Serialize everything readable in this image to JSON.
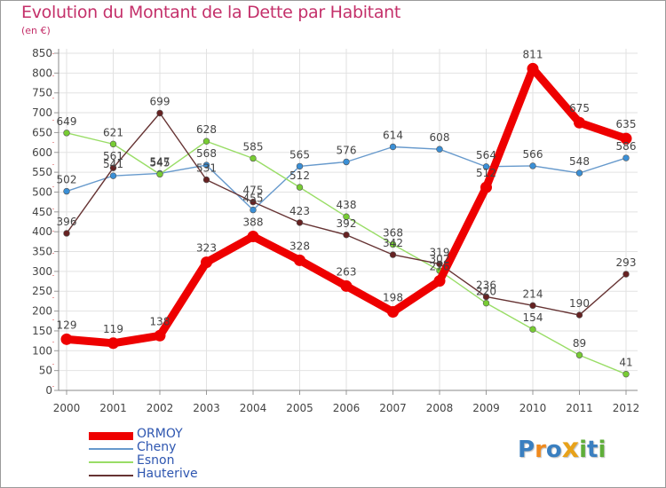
{
  "header": {
    "title": "Evolution du Montant de la Dette par Habitant",
    "subtitle": "(en €)"
  },
  "brand": {
    "name": "Proxiti",
    "letters": [
      "P",
      "r",
      "o",
      "x",
      "i",
      "t",
      "i"
    ],
    "colors": [
      "#3a7fc0",
      "#f08a1e",
      "#3a7fc0",
      "#e8a21a",
      "#5fae3a",
      "#3a7fc0",
      "#5fae3a"
    ]
  },
  "chart_data": {
    "type": "line",
    "title": "Evolution du Montant de la Dette par Habitant",
    "subtitle": "(en €)",
    "xlabel": "",
    "ylabel": "",
    "x": [
      "2000",
      "2001",
      "2002",
      "2003",
      "2004",
      "2005",
      "2006",
      "2007",
      "2008",
      "2009",
      "2010",
      "2011",
      "2012"
    ],
    "ylim": [
      0,
      850
    ],
    "yticks": [
      0,
      50,
      100,
      150,
      200,
      250,
      300,
      350,
      400,
      450,
      500,
      550,
      600,
      650,
      700,
      750,
      800,
      850
    ],
    "grid": true,
    "legend_position": "bottom-left",
    "series": [
      {
        "name": "ORMOY",
        "color": "#ee0000",
        "marker": "#ee0000",
        "values": [
          129,
          119,
          138,
          323,
          388,
          328,
          263,
          198,
          276,
          512,
          811,
          675,
          635
        ]
      },
      {
        "name": "Cheny",
        "color": "#6699cc",
        "marker": "#3a8fd6",
        "values": [
          502,
          541,
          547,
          568,
          455,
          565,
          576,
          614,
          608,
          564,
          566,
          548,
          586
        ]
      },
      {
        "name": "Esnon",
        "color": "#99dd66",
        "marker": "#77cc33",
        "values": [
          649,
          621,
          545,
          628,
          585,
          512,
          438,
          368,
          302,
          220,
          154,
          89,
          41
        ]
      },
      {
        "name": "Hauterive",
        "color": "#663333",
        "marker": "#662222",
        "values": [
          396,
          561,
          699,
          531,
          475,
          423,
          392,
          342,
          319,
          236,
          214,
          190,
          293
        ]
      }
    ]
  }
}
